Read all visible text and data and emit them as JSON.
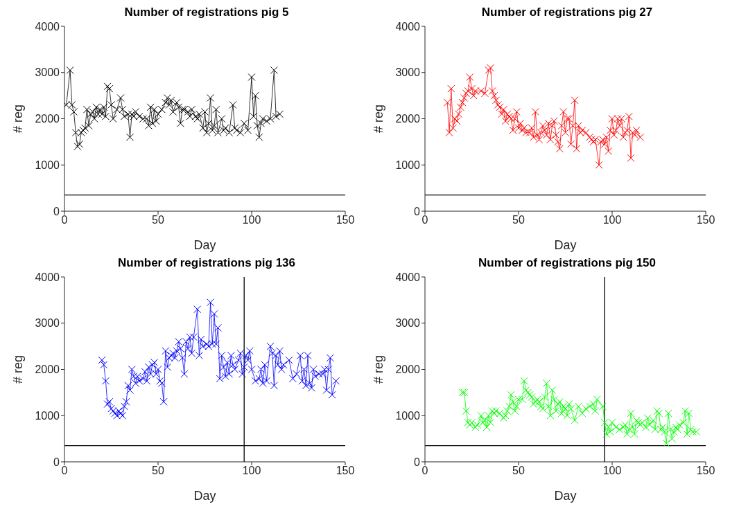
{
  "chart_data": [
    {
      "type": "line",
      "title": "Number of registrations pig 5",
      "xlabel": "Day",
      "ylabel": "# reg",
      "xlim": [
        0,
        150
      ],
      "xticks": [
        0,
        50,
        100,
        150
      ],
      "ylim": [
        0,
        4000
      ],
      "yticks": [
        0,
        1000,
        2000,
        3000,
        4000
      ],
      "marker": "cross",
      "legend": false,
      "ref_lines": [
        {
          "axis": "y",
          "value": 350,
          "color": "#000000"
        }
      ],
      "series": [
        {
          "color": "#000000",
          "x": [
            1,
            3,
            4,
            5,
            6,
            7,
            8,
            9,
            10,
            11,
            12,
            13,
            14,
            15,
            16,
            17,
            18,
            19,
            20,
            21,
            22,
            23,
            24,
            25,
            26,
            28,
            30,
            31,
            32,
            34,
            35,
            36,
            37,
            38,
            40,
            42,
            44,
            45,
            46,
            47,
            48,
            49,
            50,
            52,
            54,
            55,
            56,
            57,
            58,
            60,
            61,
            62,
            63,
            64,
            66,
            67,
            68,
            70,
            71,
            72,
            74,
            75,
            76,
            77,
            78,
            79,
            80,
            81,
            82,
            84,
            85,
            86,
            88,
            90,
            91,
            92,
            94,
            96,
            98,
            100,
            101,
            102,
            103,
            104,
            105,
            106,
            108,
            110,
            112,
            113,
            115
          ],
          "values": [
            2300,
            3050,
            2300,
            2150,
            1700,
            1400,
            1450,
            1700,
            1750,
            1800,
            2200,
            1850,
            2100,
            2150,
            2000,
            2250,
            2100,
            2200,
            2100,
            2250,
            2050,
            2700,
            2650,
            2300,
            2000,
            2200,
            2450,
            2200,
            2050,
            2100,
            1600,
            2100,
            2050,
            2150,
            2050,
            2000,
            2000,
            1850,
            2250,
            1900,
            2200,
            1950,
            2100,
            2200,
            2350,
            2450,
            2300,
            2400,
            2150,
            2350,
            2250,
            1900,
            2200,
            2200,
            2150,
            2050,
            2200,
            2050,
            2000,
            2100,
            1800,
            2150,
            1700,
            1900,
            2450,
            1750,
            1850,
            2200,
            1700,
            2000,
            1750,
            1800,
            1700,
            2300,
            1800,
            1750,
            1700,
            1900,
            1750,
            2900,
            2050,
            2500,
            1850,
            1600,
            1900,
            2000,
            1950,
            2000,
            3050,
            2050,
            2100
          ]
        }
      ]
    },
    {
      "type": "line",
      "title": "Number of registrations pig 27",
      "xlabel": "Day",
      "ylabel": "# reg",
      "xlim": [
        0,
        150
      ],
      "xticks": [
        0,
        50,
        100,
        150
      ],
      "ylim": [
        0,
        4000
      ],
      "yticks": [
        0,
        1000,
        2000,
        3000,
        4000
      ],
      "marker": "cross",
      "legend": false,
      "ref_lines": [
        {
          "axis": "y",
          "value": 350,
          "color": "#000000"
        }
      ],
      "series": [
        {
          "color": "#ff0000",
          "x": [
            12,
            13,
            14,
            15,
            16,
            17,
            18,
            19,
            20,
            21,
            22,
            23,
            24,
            25,
            26,
            27,
            30,
            32,
            34,
            35,
            36,
            37,
            38,
            39,
            40,
            41,
            42,
            43,
            44,
            45,
            46,
            47,
            48,
            49,
            50,
            51,
            52,
            53,
            54,
            56,
            57,
            58,
            59,
            60,
            61,
            62,
            63,
            64,
            65,
            66,
            67,
            68,
            69,
            70,
            71,
            72,
            73,
            74,
            75,
            76,
            77,
            78,
            79,
            80,
            81,
            82,
            83,
            84,
            86,
            88,
            89,
            90,
            91,
            93,
            94,
            95,
            96,
            97,
            98,
            99,
            100,
            101,
            102,
            103,
            104,
            105,
            106,
            107,
            108,
            109,
            110,
            111,
            112,
            113,
            115
          ],
          "values": [
            2350,
            1700,
            2650,
            1800,
            2000,
            1950,
            2100,
            2250,
            2350,
            2450,
            2550,
            2600,
            2900,
            2650,
            2500,
            2600,
            2600,
            2550,
            3050,
            3100,
            2600,
            2500,
            2400,
            2300,
            2250,
            2100,
            2200,
            1950,
            2100,
            2050,
            2000,
            1750,
            2000,
            2150,
            1800,
            1900,
            1750,
            1800,
            1700,
            1700,
            1800,
            1600,
            2150,
            1650,
            1550,
            1700,
            1850,
            1750,
            1650,
            1900,
            1550,
            1850,
            1950,
            1650,
            1500,
            1350,
            1850,
            2150,
            1700,
            2000,
            2000,
            1450,
            1850,
            2400,
            1350,
            1850,
            1700,
            1750,
            1700,
            1600,
            1550,
            1500,
            1550,
            1000,
            1500,
            1550,
            1450,
            1600,
            1300,
            1750,
            2000,
            1650,
            1750,
            2000,
            1850,
            2000,
            1600,
            1700,
            1750,
            2050,
            1150,
            1700,
            1650,
            1750,
            1600
          ]
        }
      ]
    },
    {
      "type": "line",
      "title": "Number of registrations pig 136",
      "xlabel": "Day",
      "ylabel": "# reg",
      "xlim": [
        0,
        150
      ],
      "xticks": [
        0,
        50,
        100,
        150
      ],
      "ylim": [
        0,
        4000
      ],
      "yticks": [
        0,
        1000,
        2000,
        3000,
        4000
      ],
      "marker": "cross",
      "legend": false,
      "ref_lines": [
        {
          "axis": "y",
          "value": 350,
          "color": "#000000"
        },
        {
          "axis": "x",
          "value": 96,
          "color": "#000000"
        }
      ],
      "series": [
        {
          "color": "#0000ff",
          "x": [
            20,
            21,
            22,
            23,
            24,
            25,
            26,
            27,
            28,
            29,
            30,
            31,
            32,
            33,
            34,
            35,
            36,
            37,
            38,
            39,
            40,
            42,
            43,
            44,
            45,
            46,
            47,
            48,
            49,
            50,
            51,
            52,
            53,
            54,
            55,
            56,
            57,
            58,
            59,
            60,
            61,
            62,
            63,
            64,
            65,
            66,
            67,
            68,
            69,
            71,
            72,
            73,
            74,
            76,
            77,
            78,
            79,
            80,
            81,
            82,
            83,
            84,
            85,
            86,
            87,
            88,
            89,
            90,
            91,
            93,
            94,
            95,
            96,
            97,
            98,
            99,
            100,
            102,
            104,
            105,
            106,
            107,
            108,
            110,
            111,
            112,
            113,
            114,
            115,
            116,
            117,
            120,
            122,
            124,
            126,
            127,
            128,
            129,
            130,
            131,
            132,
            133,
            134,
            136,
            138,
            139,
            140,
            141,
            142,
            143,
            145
          ],
          "values": [
            2200,
            2100,
            1750,
            1250,
            1300,
            1150,
            1100,
            1050,
            1000,
            1100,
            1050,
            1000,
            1200,
            1300,
            1650,
            1550,
            2000,
            1850,
            1700,
            1850,
            1750,
            1800,
            1950,
            1750,
            2050,
            1900,
            2100,
            2150,
            1900,
            2000,
            1750,
            1700,
            1300,
            2400,
            2050,
            2250,
            2300,
            2350,
            2250,
            2400,
            2600,
            2450,
            2250,
            1900,
            2600,
            2450,
            2700,
            2350,
            2700,
            3300,
            2300,
            2650,
            2500,
            2550,
            2500,
            3450,
            2550,
            3200,
            2550,
            2900,
            1800,
            2300,
            2050,
            1850,
            2150,
            1900,
            2300,
            2100,
            2000,
            2200,
            2350,
            1900,
            2050,
            2300,
            2200,
            2400,
            2000,
            1750,
            1800,
            2000,
            1700,
            2100,
            1750,
            2500,
            2350,
            1650,
            2300,
            2100,
            2400,
            2000,
            2100,
            2200,
            1800,
            1900,
            2300,
            1750,
            2000,
            1650,
            2300,
            1700,
            1600,
            2000,
            1850,
            1900,
            1900,
            2000,
            1550,
            2000,
            2250,
            1450,
            1750
          ]
        }
      ]
    },
    {
      "type": "line",
      "title": "Number of registrations pig 150",
      "xlabel": "Day",
      "ylabel": "# reg",
      "xlim": [
        0,
        150
      ],
      "xticks": [
        0,
        50,
        100,
        150
      ],
      "ylim": [
        0,
        4000
      ],
      "yticks": [
        0,
        1000,
        2000,
        3000,
        4000
      ],
      "marker": "cross",
      "legend": false,
      "ref_lines": [
        {
          "axis": "y",
          "value": 350,
          "color": "#000000"
        },
        {
          "axis": "x",
          "value": 96,
          "color": "#000000"
        }
      ],
      "series": [
        {
          "color": "#00ff00",
          "x": [
            20,
            21,
            22,
            23,
            24,
            25,
            27,
            28,
            30,
            31,
            32,
            33,
            34,
            35,
            36,
            37,
            38,
            40,
            42,
            43,
            44,
            45,
            46,
            47,
            48,
            49,
            50,
            52,
            53,
            54,
            55,
            56,
            57,
            58,
            59,
            60,
            61,
            62,
            63,
            64,
            65,
            66,
            67,
            68,
            69,
            70,
            71,
            72,
            73,
            74,
            75,
            76,
            77,
            78,
            80,
            82,
            84,
            86,
            88,
            90,
            91,
            92,
            95,
            96,
            97,
            98,
            99,
            100,
            102,
            104,
            106,
            107,
            108,
            109,
            110,
            111,
            112,
            113,
            114,
            115,
            116,
            118,
            119,
            120,
            122,
            123,
            124,
            125,
            126,
            127,
            128,
            129,
            130,
            131,
            132,
            133,
            134,
            135,
            136,
            138,
            139,
            140,
            141,
            142,
            143,
            145
          ],
          "values": [
            1500,
            1500,
            1100,
            850,
            800,
            850,
            750,
            800,
            1000,
            850,
            900,
            750,
            1000,
            850,
            1100,
            1050,
            1100,
            1050,
            950,
            1000,
            1100,
            1200,
            1450,
            1300,
            1100,
            1200,
            1350,
            1350,
            1750,
            1550,
            1500,
            1450,
            1400,
            1250,
            1300,
            1350,
            1300,
            1200,
            1150,
            1400,
            1700,
            1200,
            1000,
            1550,
            1350,
            1100,
            1250,
            1300,
            1050,
            1200,
            1150,
            1000,
            1250,
            1150,
            900,
            1200,
            1050,
            1150,
            1200,
            1250,
            1100,
            1350,
            1200,
            850,
            600,
            750,
            650,
            850,
            750,
            700,
            750,
            800,
            600,
            700,
            1050,
            750,
            600,
            900,
            850,
            800,
            850,
            750,
            950,
            800,
            900,
            700,
            1100,
            1050,
            700,
            750,
            650,
            400,
            1050,
            700,
            500,
            650,
            750,
            700,
            800,
            850,
            1100,
            600,
            1050,
            700,
            650,
            650
          ]
        }
      ]
    }
  ]
}
